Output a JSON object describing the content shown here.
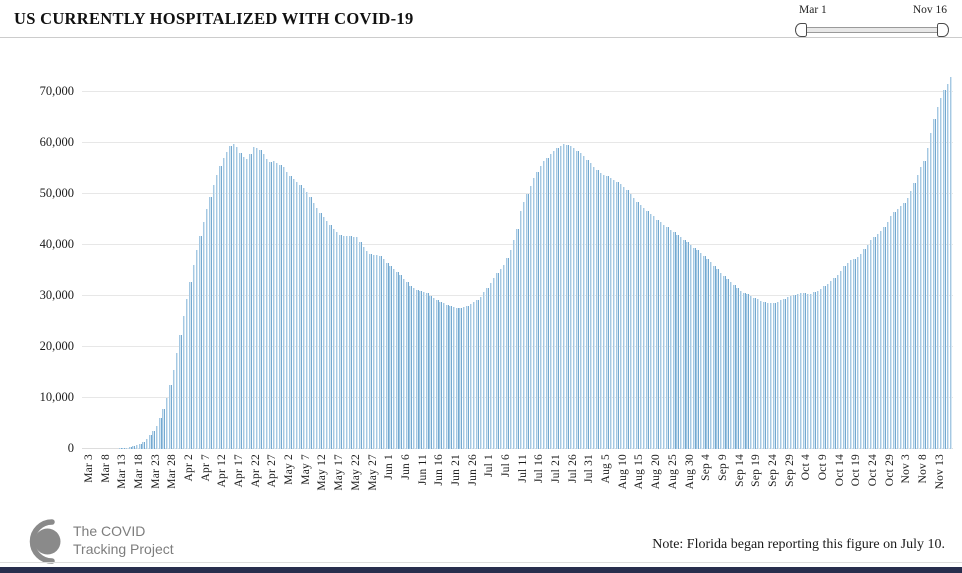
{
  "header": {
    "title": "US CURRENTLY HOSPITALIZED WITH COVID-19"
  },
  "slider": {
    "start_label": "Mar 1",
    "end_label": "Nov 16"
  },
  "chart_data": {
    "type": "bar",
    "title": "US CURRENTLY HOSPITALIZED WITH COVID-19",
    "x_start": "Mar 1",
    "x_end": "Nov 16",
    "x_frequency": "daily",
    "values": [
      0,
      0,
      0,
      0,
      0,
      0,
      0,
      0,
      0,
      50,
      80,
      120,
      180,
      250,
      350,
      500,
      700,
      1000,
      1400,
      2000,
      2700,
      3500,
      4600,
      6000,
      7800,
      10000,
      12500,
      15500,
      18800,
      22300,
      26000,
      29500,
      32800,
      36000,
      39000,
      41800,
      44500,
      47000,
      49500,
      51800,
      53800,
      55500,
      57000,
      58300,
      59400,
      59900,
      59200,
      58100,
      57300,
      56800,
      57900,
      59300,
      59100,
      58600,
      57800,
      56900,
      56200,
      56400,
      56100,
      55700,
      55200,
      54400,
      53600,
      52900,
      52300,
      51800,
      51200,
      50400,
      49400,
      48300,
      47200,
      46200,
      45400,
      44700,
      44000,
      43200,
      42500,
      42000,
      41800,
      41700,
      41700,
      41600,
      41500,
      40600,
      39600,
      38800,
      38300,
      38100,
      38000,
      37800,
      37200,
      36500,
      35900,
      35300,
      34700,
      34100,
      33400,
      32700,
      32000,
      31500,
      31200,
      31000,
      30800,
      30500,
      30100,
      29700,
      29300,
      28900,
      28600,
      28300,
      28100,
      27900,
      27700,
      27600,
      27800,
      28100,
      28400,
      28800,
      29300,
      29900,
      30700,
      31600,
      32600,
      33600,
      34500,
      35200,
      36100,
      37400,
      39100,
      41000,
      43100,
      46600,
      48500,
      50000,
      51600,
      53100,
      54400,
      55500,
      56400,
      57100,
      57800,
      58500,
      59100,
      59500,
      59800,
      59700,
      59400,
      59000,
      58500,
      58000,
      57400,
      56700,
      56000,
      55300,
      54700,
      54200,
      53800,
      53500,
      53100,
      52700,
      52300,
      51900,
      51400,
      50700,
      50000,
      49200,
      48500,
      47800,
      47200,
      46700,
      46100,
      45600,
      45000,
      44500,
      44000,
      43500,
      43000,
      42500,
      42000,
      41500,
      41000,
      40500,
      40000,
      39500,
      39000,
      38400,
      37800,
      37200,
      36600,
      35900,
      35300,
      34600,
      34000,
      33400,
      32800,
      32200,
      31600,
      31000,
      30600,
      30300,
      30000,
      29700,
      29400,
      29000,
      28800,
      28700,
      28600,
      28700,
      28900,
      29200,
      29500,
      29800,
      30000,
      30200,
      30400,
      30500,
      30600,
      30400,
      30400,
      30700,
      31000,
      31400,
      31900,
      32400,
      32900,
      33500,
      34200,
      35000,
      35800,
      36500,
      37000,
      37300,
      37600,
      38300,
      39200,
      40100,
      41000,
      41600,
      42100,
      42700,
      43600,
      44600,
      45600,
      46500,
      47100,
      47600,
      48200,
      49200,
      50600,
      52100,
      53800,
      55200,
      56400,
      59000,
      61900,
      64800,
      67100,
      68800,
      70300,
      71600,
      73000
    ],
    "x_tick_labels": [
      "Mar 3",
      "Mar 8",
      "Mar 13",
      "Mar 18",
      "Mar 23",
      "Mar 28",
      "Apr 2",
      "Apr 7",
      "Apr 12",
      "Apr 17",
      "Apr 22",
      "Apr 27",
      "May 2",
      "May 7",
      "May 12",
      "May 17",
      "May 22",
      "May 27",
      "Jun 1",
      "Jun 6",
      "Jun 11",
      "Jun 16",
      "Jun 21",
      "Jun 26",
      "Jul 1",
      "Jul 6",
      "Jul 11",
      "Jul 16",
      "Jul 21",
      "Jul 26",
      "Jul 31",
      "Aug 5",
      "Aug 10",
      "Aug 15",
      "Aug 20",
      "Aug 25",
      "Aug 30",
      "Sep 4",
      "Sep 9",
      "Sep 14",
      "Sep 19",
      "Sep 24",
      "Sep 29",
      "Oct 4",
      "Oct 9",
      "Oct 14",
      "Oct 19",
      "Oct 24",
      "Oct 29",
      "Nov 3",
      "Nov 8",
      "Nov 13"
    ],
    "x_tick_start_index": 2,
    "x_tick_step": 5,
    "y_ticks": [
      0,
      10000,
      20000,
      30000,
      40000,
      50000,
      60000,
      70000
    ],
    "y_tick_labels": [
      "0",
      "10,000",
      "20,000",
      "30,000",
      "40,000",
      "50,000",
      "60,000",
      "70,000"
    ],
    "ylim": [
      0,
      75500
    ],
    "grid": "horizontal",
    "legend": "none"
  },
  "footer": {
    "logo_line1": "The COVID",
    "logo_line2": "Tracking Project",
    "note": "Note: Florida began reporting this figure on July 10."
  },
  "colors": {
    "bar_fill": "#d6e7f3",
    "bar_edge": "#74a9d0",
    "gridline": "#e7e7e7",
    "logo_gray": "#8a8a8a",
    "bottom_strip": "#272e4d"
  }
}
